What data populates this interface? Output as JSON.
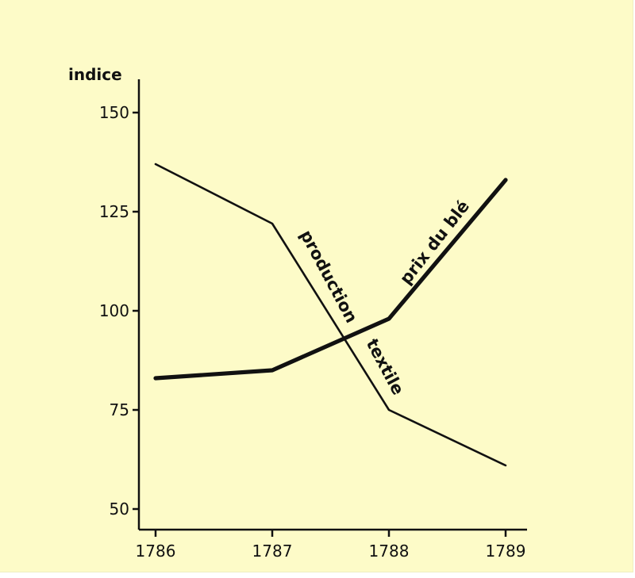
{
  "chart_data": {
    "type": "line",
    "ylabel": "indice",
    "xlabel": "",
    "categories": [
      "1786",
      "1787",
      "1788",
      "1789"
    ],
    "yticks": [
      50,
      75,
      100,
      125,
      150
    ],
    "ylim": [
      50,
      155
    ],
    "grid": false,
    "legend": "none",
    "series": [
      {
        "name": "production textile",
        "label_parts": [
          "production",
          "textile"
        ],
        "values": [
          137,
          122,
          75,
          61
        ],
        "color": "#111111"
      },
      {
        "name": "prix du blé",
        "values": [
          83,
          85,
          98,
          133
        ],
        "color": "#111111"
      }
    ]
  }
}
